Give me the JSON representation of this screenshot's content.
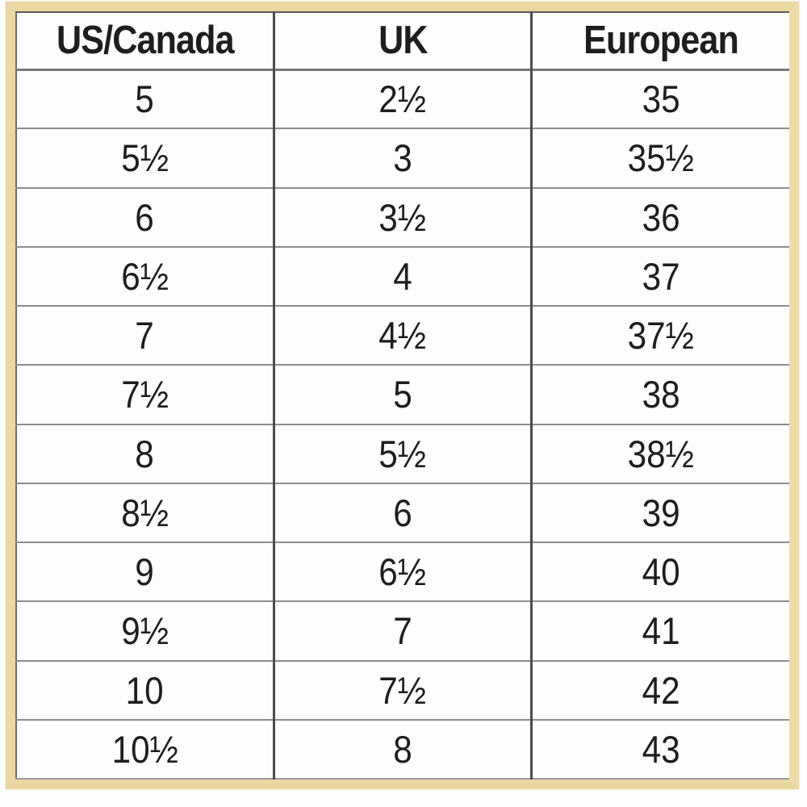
{
  "chart_data": {
    "type": "table",
    "title": "",
    "columns": [
      "US/Canada",
      "UK",
      "European"
    ],
    "rows": [
      [
        "5",
        "2½",
        "35"
      ],
      [
        "5½",
        "3",
        "35½"
      ],
      [
        "6",
        "3½",
        "36"
      ],
      [
        "6½",
        "4",
        "37"
      ],
      [
        "7",
        "4½",
        "37½"
      ],
      [
        "7½",
        "5",
        "38"
      ],
      [
        "8",
        "5½",
        "38½"
      ],
      [
        "8½",
        "6",
        "39"
      ],
      [
        "9",
        "6½",
        "40"
      ],
      [
        "9½",
        "7",
        "41"
      ],
      [
        "10",
        "7½",
        "42"
      ],
      [
        "10½",
        "8",
        "43"
      ]
    ],
    "layout": {
      "grid": "on",
      "header_row": true,
      "columns_equal_width": true
    }
  },
  "colors": {
    "frame_tan": "#ebd8a1",
    "grid_horizontal": "#8d8d8d",
    "grid_vertical": "#4c4c4c",
    "text": "#1e1e1e",
    "cell_background": "#fdfdfc",
    "page_background": "#ffffff"
  }
}
